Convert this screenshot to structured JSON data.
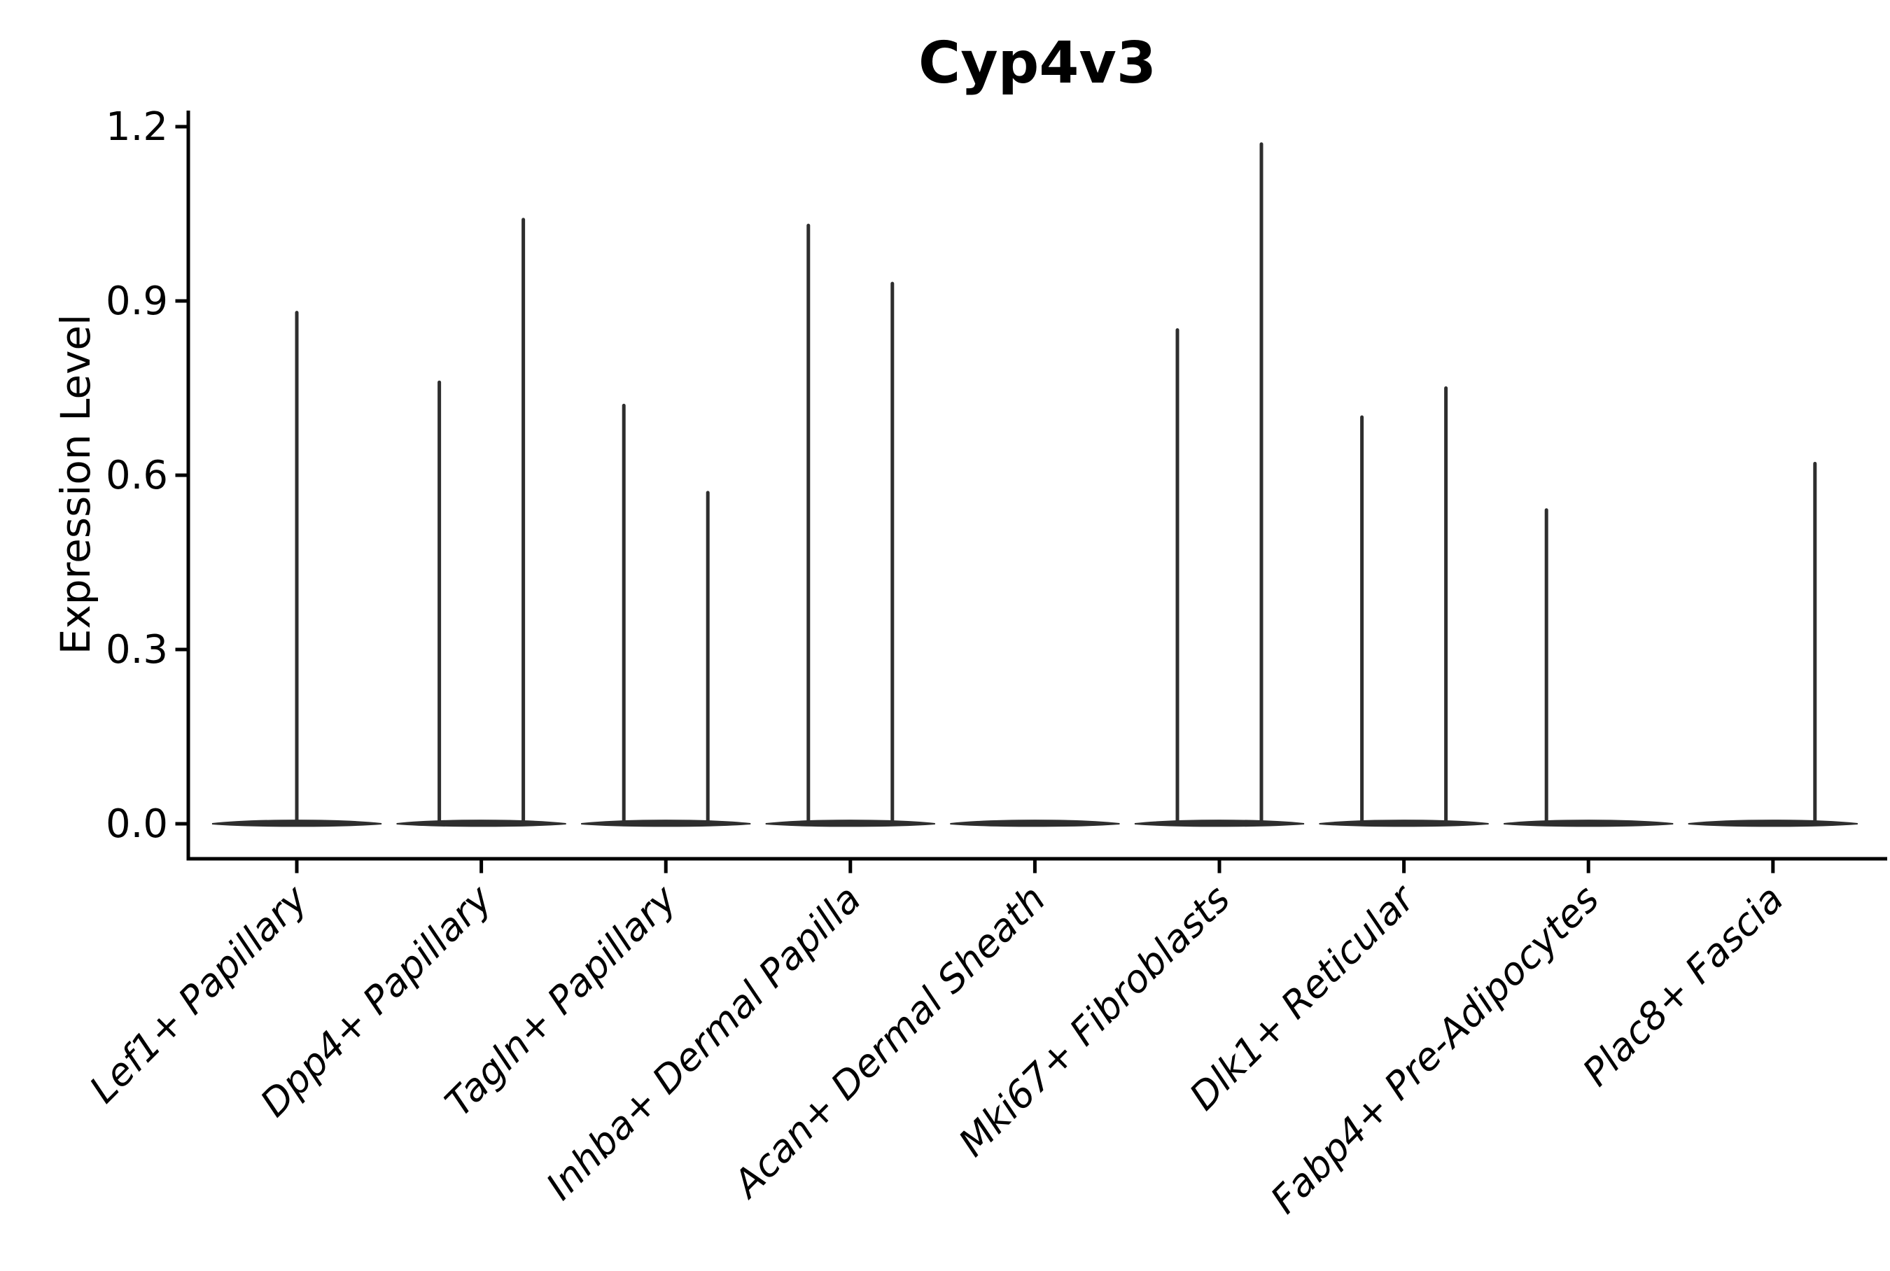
{
  "chart_data": {
    "type": "violin",
    "title": "Cyp4v3",
    "xlabel": "",
    "ylabel": "Expression Level",
    "yticks": [
      0.0,
      0.3,
      0.6,
      0.9,
      1.2
    ],
    "yticklabels": [
      "0.0",
      "0.3",
      "0.6",
      "0.9",
      "1.2"
    ],
    "ylim": [
      -0.06,
      1.23
    ],
    "grid": false,
    "legend": null,
    "categories": [
      "Lef1+ Papillary",
      "Dpp4+ Papillary",
      "Tagln+ Papillary",
      "Inhba+ Dermal Papilla",
      "Acan+ Dermal Sheath",
      "Mki67+ Fibroblasts",
      "Dlk1+ Reticular",
      "Fabp4+ Pre-Adipocytes",
      "Plac8+ Fascia"
    ],
    "violins": [
      {
        "category": "Lef1+ Papillary",
        "baseline_value": 0.0,
        "spikes": [
          {
            "slot": "center",
            "max": 0.88
          }
        ]
      },
      {
        "category": "Dpp4+ Papillary",
        "baseline_value": 0.0,
        "spikes": [
          {
            "slot": "left",
            "max": 0.76
          },
          {
            "slot": "right",
            "max": 1.04
          }
        ]
      },
      {
        "category": "Tagln+ Papillary",
        "baseline_value": 0.0,
        "spikes": [
          {
            "slot": "left",
            "max": 0.72
          },
          {
            "slot": "right",
            "max": 0.57
          }
        ]
      },
      {
        "category": "Inhba+ Dermal Papilla",
        "baseline_value": 0.0,
        "spikes": [
          {
            "slot": "left",
            "max": 1.03
          },
          {
            "slot": "right",
            "max": 0.93
          }
        ]
      },
      {
        "category": "Acan+ Dermal Sheath",
        "baseline_value": 0.0,
        "spikes": []
      },
      {
        "category": "Mki67+ Fibroblasts",
        "baseline_value": 0.0,
        "spikes": [
          {
            "slot": "left",
            "max": 0.85
          },
          {
            "slot": "right",
            "max": 1.17
          }
        ]
      },
      {
        "category": "Dlk1+ Reticular",
        "baseline_value": 0.0,
        "spikes": [
          {
            "slot": "left",
            "max": 0.7
          },
          {
            "slot": "right",
            "max": 0.75
          }
        ]
      },
      {
        "category": "Fabp4+ Pre-Adipocytes",
        "baseline_value": 0.0,
        "spikes": [
          {
            "slot": "left",
            "max": 0.54
          }
        ]
      },
      {
        "category": "Plac8+ Fascia",
        "baseline_value": 0.0,
        "spikes": [
          {
            "slot": "right",
            "max": 0.62
          }
        ]
      }
    ],
    "colors": {
      "violin": "#2e2e2e",
      "axis": "#000000",
      "text": "#000000",
      "background": "#ffffff"
    }
  }
}
